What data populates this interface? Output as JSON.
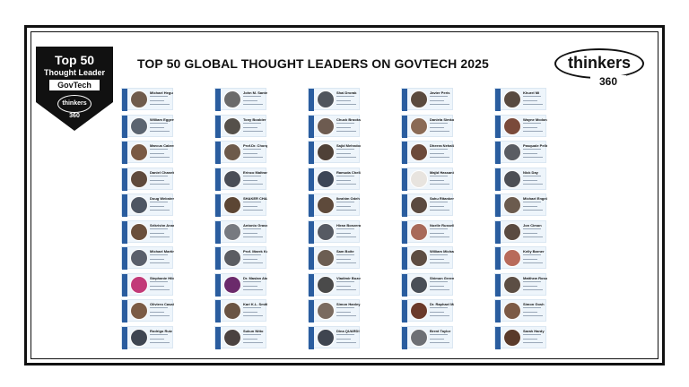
{
  "badge": {
    "top_label": "Top 50",
    "sub_label": "Thought Leader",
    "ribbon": "GovTech",
    "logo_word": "thinkers",
    "logo_num": "360"
  },
  "title": "TOP 50 GLOBAL THOUGHT LEADERS ON GOVTECH 2025",
  "logo": {
    "word": "thinkers",
    "number": "360"
  },
  "leaders": [
    {
      "name": "Michael Hegu",
      "photo": "#6f5b4c"
    },
    {
      "name": "William Eggers",
      "photo": "#5b6470"
    },
    {
      "name": "Marcus Cabrer",
      "photo": "#7a5a44"
    },
    {
      "name": "Daniel Chanek",
      "photo": "#5f4a3c"
    },
    {
      "name": "Doug Webster",
      "photo": "#4e5663"
    },
    {
      "name": "Srikrishn Anand",
      "photo": "#6a4f3b"
    },
    {
      "name": "Michael Martin",
      "photo": "#5a5f6b"
    },
    {
      "name": "Stephanie Hibb",
      "photo": "#c23a78"
    },
    {
      "name": "Oliviero Casale",
      "photo": "#7b5b45"
    },
    {
      "name": "Rodrigo Ruiz",
      "photo": "#3f4652"
    },
    {
      "name": "John M. Santero",
      "photo": "#6a6a6a"
    },
    {
      "name": "Tony Boobier",
      "photo": "#55504a"
    },
    {
      "name": "Prof.Dr. Chong",
      "photo": "#6d5a4a"
    },
    {
      "name": "Erinco Maltrane",
      "photo": "#4a4e57"
    },
    {
      "name": "SHAKER CHAND",
      "photo": "#5c4634"
    },
    {
      "name": "Antonio Grasso",
      "photo": "#777a80"
    },
    {
      "name": "Prof. Marek Kow",
      "photo": "#5b5d62"
    },
    {
      "name": "Dr. Maslan Abd",
      "photo": "#6b2a6b"
    },
    {
      "name": "Kari K.L. Smith",
      "photo": "#6a5443"
    },
    {
      "name": "Sukun Nitto",
      "photo": "#4b4240"
    },
    {
      "name": "Shai Drorak",
      "photo": "#50555d"
    },
    {
      "name": "Chuck Brooks",
      "photo": "#6d5b50"
    },
    {
      "name": "Sajid Mehndoo",
      "photo": "#4f4137"
    },
    {
      "name": "Ramuda Chellam",
      "photo": "#3d4656"
    },
    {
      "name": "Ibrahim Odeh",
      "photo": "#5e4a3b"
    },
    {
      "name": "Hiran Bonzerai",
      "photo": "#565a63"
    },
    {
      "name": "Sam Boite",
      "photo": "#6c5e52"
    },
    {
      "name": "Vladimir Bozovi",
      "photo": "#4a4a4a"
    },
    {
      "name": "Simon Hanley",
      "photo": "#7a6b60"
    },
    {
      "name": "Dina QUARDI",
      "photo": "#3f4550"
    },
    {
      "name": "Javier Peris",
      "photo": "#5a4a3e"
    },
    {
      "name": "Daniela Simko",
      "photo": "#8a6a55"
    },
    {
      "name": "Dheera Nehalla",
      "photo": "#6c4a3a"
    },
    {
      "name": "Majid Hassanin",
      "photo": "#e8e4df"
    },
    {
      "name": "Sahu Ritanken",
      "photo": "#5b4a40"
    },
    {
      "name": "Noelle Russell",
      "photo": "#a86a5a"
    },
    {
      "name": "William Michael",
      "photo": "#5e4d42"
    },
    {
      "name": "Shimon Greenba",
      "photo": "#4a4f57"
    },
    {
      "name": "Dr. Raphael Ma",
      "photo": "#6b3a2a"
    },
    {
      "name": "Brent Taylor",
      "photo": "#6e7075"
    },
    {
      "name": "Khurel Mi",
      "photo": "#584a40"
    },
    {
      "name": "Wayne Mcdonal",
      "photo": "#7a4a3a"
    },
    {
      "name": "Pasquale Pelle",
      "photo": "#5a5d63"
    },
    {
      "name": "Nick Day",
      "photo": "#4d4f55"
    },
    {
      "name": "Michael Engela",
      "photo": "#6b5b4e"
    },
    {
      "name": "Jon Cimon",
      "photo": "#5a4b41"
    },
    {
      "name": "Kelly Barner",
      "photo": "#b86a5a"
    },
    {
      "name": "Matthew Rosoff",
      "photo": "#5c4e44"
    },
    {
      "name": "Simon Gosh",
      "photo": "#7c5a45"
    },
    {
      "name": "Sarah Hardy",
      "photo": "#5a3a2a"
    }
  ]
}
